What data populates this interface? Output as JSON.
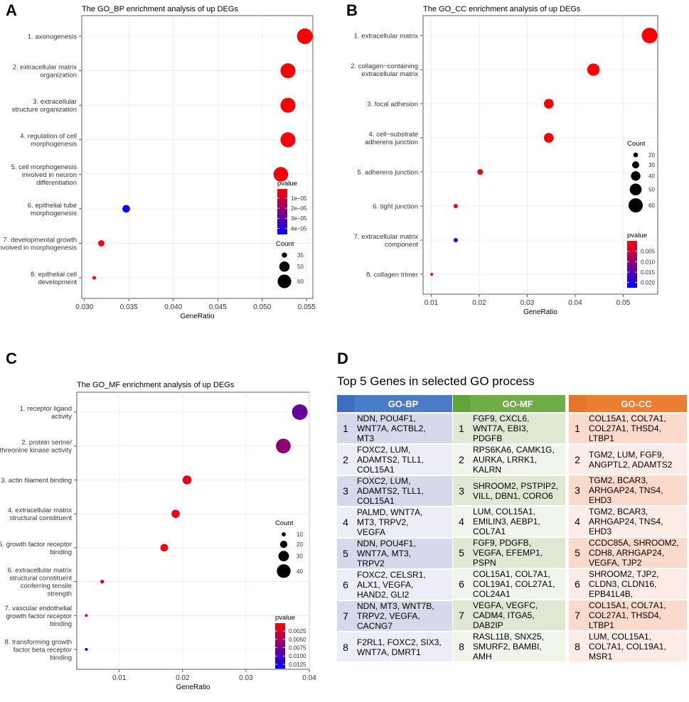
{
  "panels": {
    "A": {
      "letter": "A",
      "chart_data": {
        "type": "scatter",
        "title": "The GO_BP enrichment analysis of up DEGs",
        "xlabel": "GeneRatio",
        "xlim": [
          0.0297,
          0.0557
        ],
        "xticks": [
          0.03,
          0.035,
          0.04,
          0.045,
          0.05,
          0.055
        ],
        "xtick_labels": [
          "0.030",
          "0.035",
          "0.040",
          "0.045",
          "0.050",
          "0.055"
        ],
        "terms": [
          {
            "label": "1. axonogenesis",
            "gene_ratio": 0.0548,
            "count": 66,
            "pvalue": 1e-06
          },
          {
            "label": "2. extracellular matrix\norganization",
            "gene_ratio": 0.0529,
            "count": 64,
            "pvalue": 2e-06
          },
          {
            "label": "3. extracellular\nstructure organization",
            "gene_ratio": 0.0529,
            "count": 64,
            "pvalue": 2e-06
          },
          {
            "label": "4. regulation of cell\nmorphogenesis",
            "gene_ratio": 0.0529,
            "count": 64,
            "pvalue": 2.5e-06
          },
          {
            "label": "5. cell morphogenesis\ninvolved in neuron\ndifferentiation",
            "gene_ratio": 0.0521,
            "count": 63,
            "pvalue": 3e-06
          },
          {
            "label": "6. epithelial tube\nmorphogenesis",
            "gene_ratio": 0.0347,
            "count": 42,
            "pvalue": 4.5e-05
          },
          {
            "label": "7. developmental growth\ninvolved in morphogenesis",
            "gene_ratio": 0.0319,
            "count": 38,
            "pvalue": 4e-06
          },
          {
            "label": "8. epithelial cell\ndevelopment",
            "gene_ratio": 0.0311,
            "count": 30,
            "pvalue": 2e-06
          }
        ],
        "legend_pvalue": {
          "title": "pvalue",
          "ticks": [
            1e-05,
            2e-05,
            3e-05,
            4e-05
          ],
          "labels": [
            "1e−05",
            "2e−05",
            "3e−05",
            "4e−05"
          ],
          "range": [
            1e-06,
            4.6e-05
          ]
        },
        "legend_count": {
          "title": "Count",
          "values": [
            35,
            50,
            60
          ],
          "labels": [
            "35",
            "50",
            "60"
          ]
        },
        "size_scale": {
          "count_range": [
            30,
            66
          ],
          "radius_range": [
            2.5,
            11
          ]
        }
      }
    },
    "B": {
      "letter": "B",
      "chart_data": {
        "type": "scatter",
        "title": "The GO_CC enrichment analysis of up DEGs",
        "xlabel": "GeneRatio",
        "xlim": [
          0.0083,
          0.0572
        ],
        "xticks": [
          0.01,
          0.02,
          0.03,
          0.04,
          0.05
        ],
        "xtick_labels": [
          "0.01",
          "0.02",
          "0.03",
          "0.04",
          "0.05"
        ],
        "terms": [
          {
            "label": "1. extracellular matrix",
            "gene_ratio": 0.0555,
            "count": 66,
            "pvalue": 1e-07
          },
          {
            "label": "2. collagen−containing\nextracellular matrix",
            "gene_ratio": 0.0438,
            "count": 52,
            "pvalue": 5e-07
          },
          {
            "label": "3. focal adhesion",
            "gene_ratio": 0.0345,
            "count": 41,
            "pvalue": 0.0005
          },
          {
            "label": "4. cell−substrate\nadherens junction",
            "gene_ratio": 0.0345,
            "count": 41,
            "pvalue": 0.0006
          },
          {
            "label": "5. adherens junction",
            "gene_ratio": 0.0202,
            "count": 24,
            "pvalue": 0.0015
          },
          {
            "label": "6. tight junction",
            "gene_ratio": 0.0151,
            "count": 18,
            "pvalue": 0.001
          },
          {
            "label": "7. extracellular matrix\ncomponent",
            "gene_ratio": 0.0151,
            "count": 18,
            "pvalue": 0.022
          },
          {
            "label": "8. collagen trimer",
            "gene_ratio": 0.0101,
            "count": 12,
            "pvalue": 0.0025
          }
        ],
        "legend_pvalue": {
          "title": "pvalue",
          "ticks": [
            0.005,
            0.01,
            0.015,
            0.02
          ],
          "labels": [
            "0.005",
            "0.010",
            "0.015",
            "0.020"
          ],
          "range": [
            1e-07,
            0.0225
          ]
        },
        "legend_count": {
          "title": "Count",
          "values": [
            20,
            30,
            40,
            50,
            60
          ],
          "labels": [
            "20",
            "30",
            "40",
            "50",
            "60"
          ]
        },
        "size_scale": {
          "count_range": [
            12,
            66
          ],
          "radius_range": [
            2,
            11
          ]
        }
      }
    },
    "C": {
      "letter": "C",
      "chart_data": {
        "type": "scatter",
        "title": "The GO_MF enrichment analysis of up DEGs",
        "xlabel": "GeneRatio",
        "xlim": [
          0.0033,
          0.04
        ],
        "xticks": [
          0.01,
          0.02,
          0.03,
          0.04
        ],
        "xtick_labels": [
          "0.01",
          "0.02",
          "0.03",
          "0.04"
        ],
        "terms": [
          {
            "label": "1. receptor ligand\nactivity",
            "gene_ratio": 0.0385,
            "count": 46,
            "pvalue": 0.0082
          },
          {
            "label": "2. protein serine/\nthreonine kinase activity",
            "gene_ratio": 0.0359,
            "count": 43,
            "pvalue": 0.0062
          },
          {
            "label": "3. actin filament binding",
            "gene_ratio": 0.0207,
            "count": 25,
            "pvalue": 0.0016
          },
          {
            "label": "4. extracellular matrix\nstructural constituent",
            "gene_ratio": 0.0189,
            "count": 23,
            "pvalue": 0.0009
          },
          {
            "label": "5. growth factor receptor\nbinding",
            "gene_ratio": 0.0171,
            "count": 21,
            "pvalue": 0.0006
          },
          {
            "label": "6. extracellular matrix\nstructural constituent\nconferring tensile\nstrength",
            "gene_ratio": 0.0073,
            "count": 9,
            "pvalue": 0.0008
          },
          {
            "label": "7. vascular endothelial\ngrowth factor receptor\nbinding",
            "gene_ratio": 0.0048,
            "count": 6,
            "pvalue": 0.0005
          },
          {
            "label": "8. transforming growth\nfactor beta receptor\nbinding",
            "gene_ratio": 0.0048,
            "count": 6,
            "pvalue": 0.0135
          }
        ],
        "legend_pvalue": {
          "title": "pvalue",
          "ticks": [
            0.0025,
            0.005,
            0.0075,
            0.01,
            0.0125
          ],
          "labels": [
            "0.0025",
            "0.0050",
            "0.0075",
            "0.0100",
            "0.0125"
          ],
          "range": [
            0.0001,
            0.0138
          ]
        },
        "legend_count": {
          "title": "Count",
          "values": [
            10,
            20,
            30,
            40
          ],
          "labels": [
            "10",
            "20",
            "30",
            "40"
          ]
        },
        "size_scale": {
          "count_range": [
            6,
            46
          ],
          "radius_range": [
            2,
            11
          ]
        }
      }
    }
  },
  "table_panel": {
    "letter": "D",
    "title": "Top 5 Genes in selected GO process",
    "groups": [
      {
        "header": "GO-BP",
        "header_color": "#4a7bc8",
        "index_color": "#3c6fc2",
        "row_colors": [
          "#d6d8ec",
          "#ecedf7"
        ],
        "rows": [
          {
            "index": "1",
            "genes": [
              "NDN, POU4F1,",
              "WNT7A, ACTBL2,",
              "MT3"
            ]
          },
          {
            "index": "2",
            "genes": [
              "FOXC2, LUM,",
              "ADAMTS2, TLL1,",
              "COL15A1"
            ]
          },
          {
            "index": "3",
            "genes": [
              "FOXC2, LUM,",
              "ADAMTS2, TLL1,",
              "COL15A1"
            ]
          },
          {
            "index": "4",
            "genes": [
              "PALMD, WNT7A,",
              "MT3, TRPV2,",
              "VEGFA"
            ]
          },
          {
            "index": "5",
            "genes": [
              "NDN, POU4F1,",
              "WNT7A, MT3,",
              "TRPV2"
            ]
          },
          {
            "index": "6",
            "genes": [
              "FOXC2, CELSR1,",
              "ALX1, VEGFA,",
              "HAND2, GLI2"
            ]
          },
          {
            "index": "7",
            "genes": [
              "NDN, MT3, WNT7B,",
              "TRPV2, VEGFA,",
              "CACNG7"
            ]
          },
          {
            "index": "8",
            "genes": [
              "F2RL1, FOXC2, SIX3,",
              "WNT7A, DMRT1"
            ]
          }
        ]
      },
      {
        "header": "GO-MF",
        "header_color": "#70ad47",
        "index_color": "#62a33a",
        "row_colors": [
          "#dfe8d3",
          "#f0f4ea"
        ],
        "rows": [
          {
            "index": "1",
            "genes": [
              "FGF9, CXCL6,",
              "WNT7A, EBI3,",
              "PDGFB"
            ]
          },
          {
            "index": "2",
            "genes": [
              "RPS6KA6, CAMK1G,",
              "AURKA, LRRK1,",
              "KALRN"
            ]
          },
          {
            "index": "3",
            "genes": [
              "SHROOM2, PSTPIP2,",
              "VILL, DBN1, CORO6"
            ]
          },
          {
            "index": "4",
            "genes": [
              "LUM, COL15A1,",
              "EMILIN3, AEBP1,",
              "COL7A1"
            ]
          },
          {
            "index": "5",
            "genes": [
              "FGF9, PDGFB,",
              "VEGFA, EFEMP1,",
              "PSPN"
            ]
          },
          {
            "index": "6",
            "genes": [
              "COL15A1, COL7A1,",
              "COL19A1, COL27A1,",
              "COL24A1"
            ]
          },
          {
            "index": "7",
            "genes": [
              "VEGFA, VEGFC,",
              "CADM4, ITGA5,",
              "DAB2IP"
            ]
          },
          {
            "index": "8",
            "genes": [
              "RASL11B, SNX25,",
              "SMURF2, BAMBI,",
              "AMH"
            ]
          }
        ]
      },
      {
        "header": "GO-CC",
        "header_color": "#ed7d31",
        "index_color": "#e8732a",
        "row_colors": [
          "#fbd9cb",
          "#fdecE5"
        ],
        "rows": [
          {
            "index": "1",
            "genes": [
              "COL15A1, COL7A1,",
              "COL27A1, THSD4,",
              "LTBP1"
            ]
          },
          {
            "index": "2",
            "genes": [
              "TGM2, LUM, FGF9,",
              "ANGPTL2, ADAMTS2"
            ]
          },
          {
            "index": "3",
            "genes": [
              "TGM2, BCAR3,",
              "ARHGAP24, TNS4,",
              "EHD3"
            ]
          },
          {
            "index": "4",
            "genes": [
              "TGM2, BCAR3,",
              "ARHGAP24, TNS4,",
              "EHD3"
            ]
          },
          {
            "index": "5",
            "genes": [
              "CCDC85A, SHROOM2,",
              "CDH8, ARHGAP24,",
              "VEGFA, TJP2"
            ]
          },
          {
            "index": "6",
            "genes": [
              "SHROOM2, TJP2,",
              "CLDN3, CLDN16,",
              "EPB41L4B,"
            ]
          },
          {
            "index": "7",
            "genes": [
              "COL15A1, COL7A1,",
              "COL27A1, THSD4,",
              "LTBP1"
            ]
          },
          {
            "index": "8",
            "genes": [
              "LUM, COL15A1,",
              "COL7A1, COL19A1,",
              "MSR1"
            ]
          }
        ]
      }
    ]
  }
}
